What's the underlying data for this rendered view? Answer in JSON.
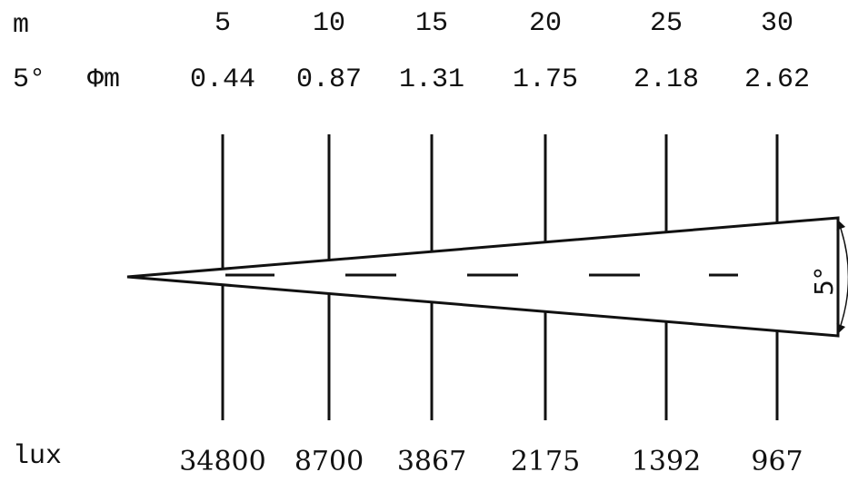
{
  "row_labels": {
    "distance": "m",
    "angle": "5°",
    "diameter": "Φm",
    "illuminance": "lux"
  },
  "distances": [
    "5",
    "10",
    "15",
    "20",
    "25",
    "30"
  ],
  "diameters": [
    "0.44",
    "0.87",
    "1.31",
    "1.75",
    "2.18",
    "2.62"
  ],
  "lux": [
    "34800",
    "8700",
    "3867",
    "2175",
    "1392",
    "967"
  ],
  "beam_angle_label": "5°"
}
